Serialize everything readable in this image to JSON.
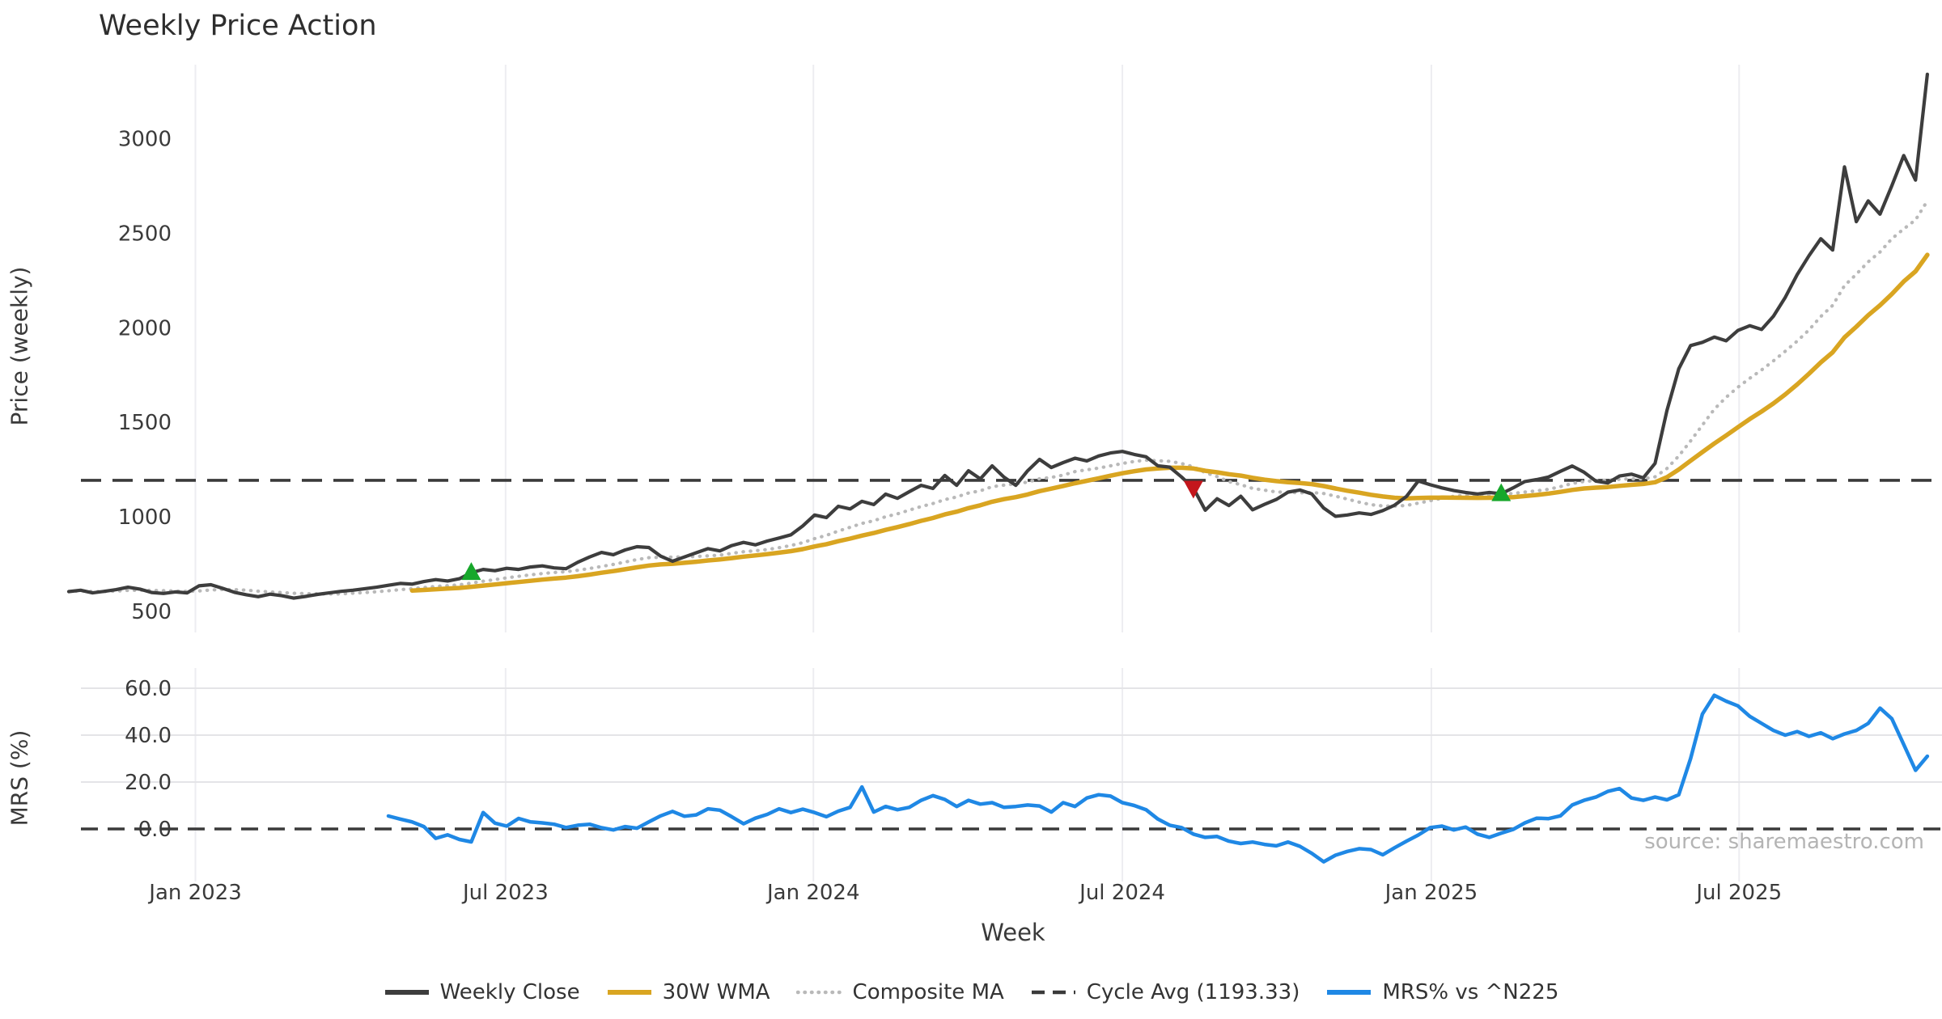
{
  "source_note": "source: sharemaestro.com",
  "legend": {
    "items": [
      {
        "label": "Weekly Close",
        "color": "#3d3d3d",
        "style": "solid"
      },
      {
        "label": "30W WMA",
        "color": "#d9a521",
        "style": "solid"
      },
      {
        "label": "Composite MA",
        "color": "#b9b9b9",
        "style": "dotted"
      },
      {
        "label": "Cycle Avg (1193.33)",
        "color": "#3a3a3a",
        "style": "dashed"
      },
      {
        "label": "MRS% vs ^N225",
        "color": "#1f88e5",
        "style": "solid"
      }
    ]
  },
  "chart_data": [
    {
      "type": "line",
      "panel": "price",
      "title": "Weekly Price Action",
      "ylabel": "Price (weekly)",
      "grid": "vertical-only",
      "x_axis": {
        "unit": "weeks",
        "ticks": [
          {
            "label": "Jan 2023",
            "week": 10.7
          },
          {
            "label": "Jul 2023",
            "week": 36.9
          },
          {
            "label": "Jan 2024",
            "week": 62.9
          },
          {
            "label": "Jul 2024",
            "week": 89.0
          },
          {
            "label": "Jan 2025",
            "week": 115.1
          },
          {
            "label": "Jul 2025",
            "week": 141.1
          }
        ]
      },
      "y_axis": {
        "range": [
          400,
          3400
        ],
        "ticks": [
          {
            "label": "500",
            "value": 500
          },
          {
            "label": "1000",
            "value": 1000
          },
          {
            "label": "1500",
            "value": 1500
          },
          {
            "label": "2000",
            "value": 2000
          },
          {
            "label": "2500",
            "value": 2500
          },
          {
            "label": "3000",
            "value": 3000
          }
        ]
      },
      "series": [
        {
          "name": "Weekly Close",
          "color": "#3d3d3d",
          "style": "solid",
          "width": 4.2,
          "start_week": 0,
          "values": [
            605,
            612,
            598,
            606,
            615,
            628,
            618,
            600,
            595,
            603,
            598,
            635,
            641,
            622,
            601,
            588,
            578,
            591,
            583,
            570,
            579,
            590,
            598,
            606,
            612,
            620,
            628,
            638,
            648,
            644,
            658,
            668,
            661,
            673,
            705,
            722,
            715,
            728,
            722,
            735,
            741,
            730,
            726,
            760,
            788,
            812,
            800,
            825,
            842,
            838,
            792,
            765,
            788,
            810,
            832,
            820,
            848,
            865,
            852,
            872,
            888,
            905,
            952,
            1010,
            996,
            1056,
            1042,
            1082,
            1065,
            1120,
            1098,
            1133,
            1167,
            1150,
            1219,
            1167,
            1244,
            1201,
            1270,
            1210,
            1167,
            1244,
            1304,
            1261,
            1287,
            1310,
            1296,
            1322,
            1338,
            1346,
            1330,
            1318,
            1270,
            1263,
            1211,
            1152,
            1035,
            1096,
            1060,
            1109,
            1037,
            1066,
            1092,
            1131,
            1142,
            1121,
            1047,
            1003,
            1010,
            1021,
            1013,
            1033,
            1062,
            1108,
            1190,
            1170,
            1153,
            1139,
            1129,
            1121,
            1129,
            1122,
            1153,
            1187,
            1197,
            1211,
            1241,
            1269,
            1236,
            1189,
            1179,
            1216,
            1226,
            1206,
            1283,
            1563,
            1783,
            1906,
            1923,
            1951,
            1931,
            1986,
            2011,
            1991,
            2061,
            2161,
            2281,
            2381,
            2471,
            2411,
            2851,
            2561,
            2671,
            2601,
            2751,
            2911,
            2781,
            3341
          ]
        },
        {
          "name": "30W WMA",
          "color": "#d9a521",
          "style": "solid",
          "width": 5.5,
          "derived_from": "Weekly Close",
          "method": "30-week linearly weighted moving average"
        },
        {
          "name": "Composite MA",
          "color": "#b9b9b9",
          "style": "dotted",
          "width": 4.2,
          "derived_from": "Weekly Close",
          "method": "mean of 5/10/20-week moving averages"
        },
        {
          "name": "Cycle Avg (1193.33)",
          "color": "#3a3a3a",
          "style": "dashed",
          "width": 3.6,
          "constant_value": 1193.33
        }
      ],
      "markers": {
        "buy": {
          "shape": "triangle-up",
          "color": "#17a72b",
          "points": [
            {
              "week": 34,
              "price": 705
            },
            {
              "week": 121,
              "price": 1122
            }
          ]
        },
        "sell": {
          "shape": "triangle-down",
          "color": "#c4161c",
          "points": [
            {
              "week": 95,
              "price": 1152
            }
          ]
        }
      }
    },
    {
      "type": "line",
      "panel": "mrs",
      "ylabel": "MRS (%)",
      "xlabel": "Week",
      "grid": "horizontal-and-vertical",
      "x_axis": {
        "unit": "weeks",
        "ticks": [
          {
            "label": "Jan 2023",
            "week": 10.7
          },
          {
            "label": "Jul 2023",
            "week": 36.9
          },
          {
            "label": "Jan 2024",
            "week": 62.9
          },
          {
            "label": "Jul 2024",
            "week": 89.0
          },
          {
            "label": "Jan 2025",
            "week": 115.1
          },
          {
            "label": "Jul 2025",
            "week": 141.1
          }
        ]
      },
      "y_axis": {
        "range": [
          -21,
          68
        ],
        "ticks": [
          {
            "label": "0.0",
            "value": 0
          },
          {
            "label": "20.0",
            "value": 20
          },
          {
            "label": "40.0",
            "value": 40
          },
          {
            "label": "60.0",
            "value": 60
          }
        ]
      },
      "zero_line": {
        "style": "dashed",
        "value": 0,
        "color": "#3a3a3a"
      },
      "series": [
        {
          "name": "MRS% vs ^N225",
          "color": "#1f88e5",
          "style": "solid",
          "width": 4.5,
          "start_week": 27,
          "values": [
            5.5,
            4.2,
            3.0,
            1.0,
            -4.0,
            -2.5,
            -4.5,
            -5.5,
            7.0,
            2.5,
            1.2,
            4.5,
            3.0,
            2.6,
            2.0,
            0.6,
            1.6,
            2.0,
            0.5,
            -0.4,
            1.0,
            0.3,
            3.0,
            5.6,
            7.5,
            5.4,
            6.0,
            8.6,
            8.0,
            5.2,
            2.2,
            4.6,
            6.2,
            8.6,
            7.0,
            8.4,
            7.0,
            5.2,
            7.6,
            9.2,
            17.9,
            7.2,
            9.6,
            8.2,
            9.2,
            12.2,
            14.2,
            12.6,
            9.6,
            12.2,
            10.6,
            11.2,
            9.2,
            9.6,
            10.2,
            9.8,
            7.2,
            11.2,
            9.6,
            13.2,
            14.6,
            14.0,
            11.2,
            10.0,
            8.2,
            4.2,
            1.6,
            0.6,
            -2.2,
            -3.6,
            -3.2,
            -5.2,
            -6.2,
            -5.6,
            -6.6,
            -7.2,
            -5.6,
            -7.4,
            -10.4,
            -14.0,
            -11.2,
            -9.6,
            -8.4,
            -8.8,
            -11.0,
            -8.0,
            -5.2,
            -2.6,
            0.6,
            1.2,
            -0.4,
            0.8,
            -2.2,
            -3.6,
            -1.8,
            -0.2,
            2.6,
            4.6,
            4.4,
            5.6,
            10.2,
            12.2,
            13.6,
            16.0,
            17.2,
            13.2,
            12.2,
            13.6,
            12.4,
            14.6,
            30.0,
            49.0,
            57.0,
            54.5,
            52.5,
            48.0,
            45.0,
            42.0,
            40.0,
            41.5,
            39.5,
            41.0,
            38.5,
            40.5,
            42.0,
            45.0,
            51.5,
            47.0,
            36.0,
            25.0,
            31.0
          ]
        }
      ]
    }
  ],
  "colors": {
    "grid_vertical": "#ededf1",
    "grid_horizontal": "#e4e4e7",
    "tick_text": "#3a3a3a",
    "title_text": "#2e2e2e",
    "source_text": "#b4b4b4"
  }
}
